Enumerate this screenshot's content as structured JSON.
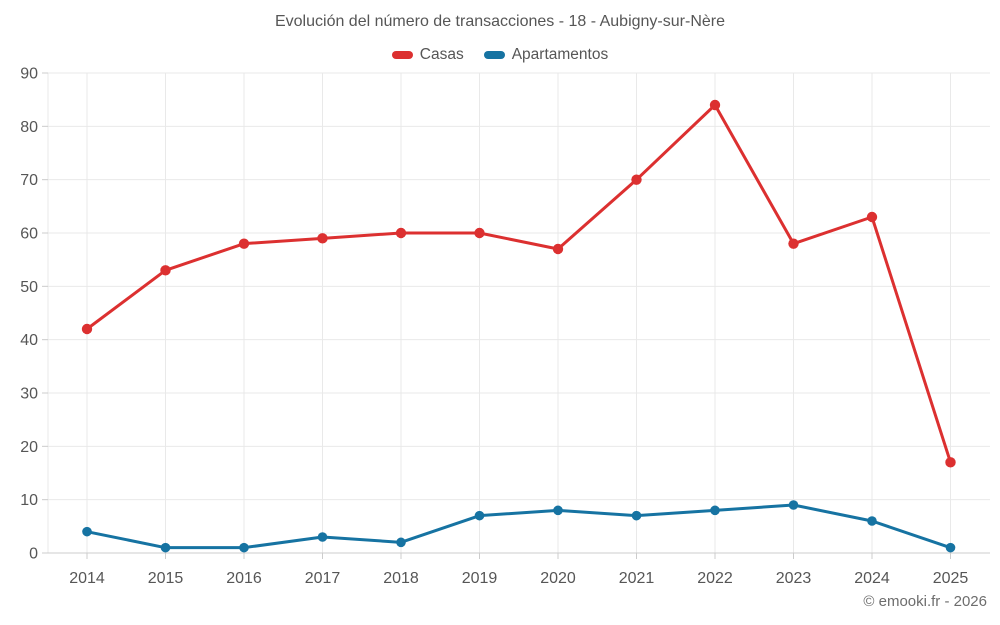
{
  "header": {
    "title": "Evolución del número de transacciones - 18 - Aubigny-sur-Nère"
  },
  "footer": {
    "credit": "© emooki.fr - 2026"
  },
  "colors": {
    "casas": "#dc3030",
    "apartamentos": "#1673a2",
    "gridline": "#e9e9e9",
    "axis_line": "#cccccc",
    "text": "#565656",
    "footer_text": "#6d6d6d",
    "background": "#ffffff"
  },
  "chart_data": {
    "type": "line",
    "title": "Evolución del número de transacciones - 18 - Aubigny-sur-Nère",
    "categories": [
      "2014",
      "2015",
      "2016",
      "2017",
      "2018",
      "2019",
      "2020",
      "2021",
      "2022",
      "2023",
      "2024",
      "2025"
    ],
    "series": [
      {
        "name": "Casas",
        "color": "#dc3030",
        "values": [
          42,
          53,
          58,
          59,
          60,
          60,
          57,
          70,
          84,
          58,
          63,
          17
        ]
      },
      {
        "name": "Apartamentos",
        "color": "#1673a2",
        "values": [
          4,
          1,
          1,
          3,
          2,
          7,
          8,
          7,
          8,
          9,
          6,
          1
        ]
      }
    ],
    "xlabel": "",
    "ylabel": "",
    "ylim": [
      0,
      90
    ],
    "ytick_step": 10,
    "yticks": [
      0,
      10,
      20,
      30,
      40,
      50,
      60,
      70,
      80,
      90
    ],
    "grid": true,
    "legend_position": "top"
  }
}
